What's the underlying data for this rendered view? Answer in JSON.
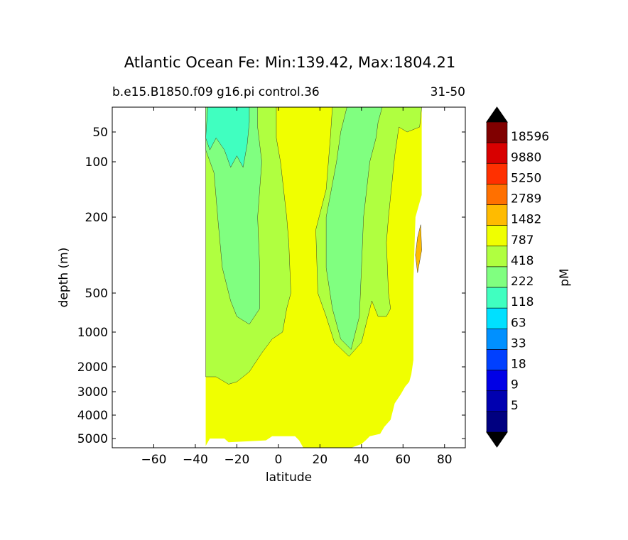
{
  "title": "Atlantic Ocean Fe: Min:139.42, Max:1804.21",
  "subtitle_left": "b.e15.B1850.f09 g16.pi control.36",
  "subtitle_right": "31-50",
  "chart_data": {
    "type": "contour",
    "xlabel": "latitude",
    "ylabel": "depth (m)",
    "xlim": [
      -80,
      90
    ],
    "ylim": [
      5500,
      0
    ],
    "y_scale": "pseudo-log (depth)",
    "x_ticks": [
      -60,
      -40,
      -20,
      0,
      20,
      40,
      60,
      80
    ],
    "y_ticks": [
      50,
      100,
      200,
      500,
      1000,
      2000,
      3000,
      4000,
      5000
    ],
    "colorbar": {
      "label": "pM",
      "levels": [
        5,
        9,
        18,
        33,
        63,
        118,
        222,
        418,
        787,
        1482,
        2789,
        5250,
        9880,
        18596
      ],
      "colors": [
        "#000080",
        "#0000b0",
        "#0000e6",
        "#0040ff",
        "#0090ff",
        "#00e0ff",
        "#40ffc0",
        "#80ff80",
        "#b0ff40",
        "#f0ff00",
        "#ffbb00",
        "#ff7000",
        "#ff3000",
        "#d80000",
        "#800000"
      ],
      "extend": "both"
    },
    "regions": [
      {
        "level_band": "787-1482",
        "description": "background fill over ocean section (most of water column)"
      },
      {
        "level_band": "418-787",
        "description": "upper southern hemisphere + tropical lobe"
      },
      {
        "level_band": "222-418",
        "description": "subsurface low-Fe tongues in southern and northern subtropics"
      },
      {
        "level_band": "118-222",
        "description": "near-surface minimum around 30S-15S"
      },
      {
        "level_band": "1482-2789",
        "description": "small patch near 65N at ~300 m"
      }
    ]
  }
}
